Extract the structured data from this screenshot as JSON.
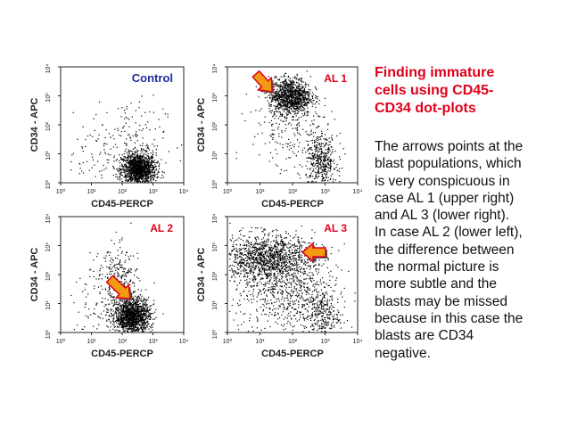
{
  "panels": [
    {
      "id": "control",
      "label": "Control",
      "label_color": "#1f2f9c",
      "xlabel": "CD45-PERCP",
      "ylabel": "CD34 - APC",
      "arrow": null
    },
    {
      "id": "al1",
      "label": "AL 1",
      "label_color": "#e0001a",
      "xlabel": "CD45-PERCP",
      "ylabel": "CD34 - APC",
      "arrow": "upper-left"
    },
    {
      "id": "al2",
      "label": "AL 2",
      "label_color": "#e0001a",
      "xlabel": "CD45-PERCP",
      "ylabel": "CD34 - APC",
      "arrow": "left"
    },
    {
      "id": "al3",
      "label": "AL 3",
      "label_color": "#e0001a",
      "xlabel": "CD45-PERCP",
      "ylabel": "CD34 - APC",
      "arrow": "right"
    }
  ],
  "tick_labels": [
    "10⁰",
    "10¹",
    "10²",
    "10³",
    "10⁴"
  ],
  "text": {
    "title_lines": [
      "Finding immature",
      "cells using CD45-",
      "CD34 dot-plots"
    ],
    "body_lines": [
      "The arrows points at the",
      "blast populations, which",
      "is very conspicuous in",
      "case AL 1 (upper right)",
      "and AL 3 (lower right).",
      "In case AL 2 (lower left),",
      "the difference between",
      "the normal picture is",
      "more subtle and the",
      "blasts may be missed",
      "because in this case the",
      "blasts are CD34",
      "negative."
    ]
  },
  "colors": {
    "accent_red": "#e0001a",
    "control_blue": "#1f2f9c",
    "arrow_orange": "#f39a12",
    "dots": "#000000"
  }
}
